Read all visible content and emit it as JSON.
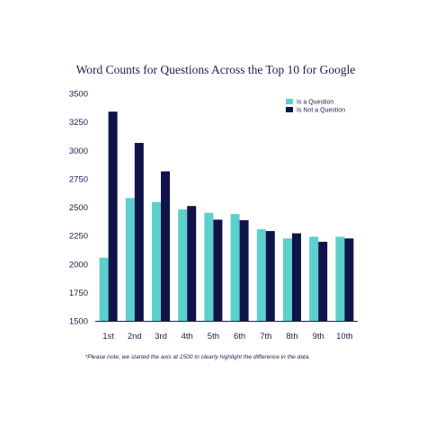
{
  "chart_data": {
    "type": "bar",
    "title": "Word Counts for Questions Across the Top 10 for Google",
    "categories": [
      "1st",
      "2nd",
      "3rd",
      "4th",
      "5th",
      "6th",
      "7th",
      "8th",
      "9th",
      "10th"
    ],
    "series": [
      {
        "name": "Is a Question",
        "color": "#5ccfcf",
        "values": [
          2055,
          2580,
          2545,
          2480,
          2450,
          2440,
          2305,
          2225,
          2240,
          2240
        ]
      },
      {
        "name": "Is Not a Question",
        "color": "#10134a",
        "values": [
          3340,
          3065,
          2815,
          2510,
          2390,
          2385,
          2290,
          2270,
          2195,
          2225
        ]
      }
    ],
    "ylim": [
      1500,
      3500
    ],
    "yticks": [
      1500,
      1750,
      2000,
      2250,
      2500,
      2750,
      3000,
      3250,
      3500
    ],
    "grid": false,
    "legend": "top-right",
    "note": "*Please note, we started the axis at 1500 to clearly highlight the difference in the data."
  }
}
